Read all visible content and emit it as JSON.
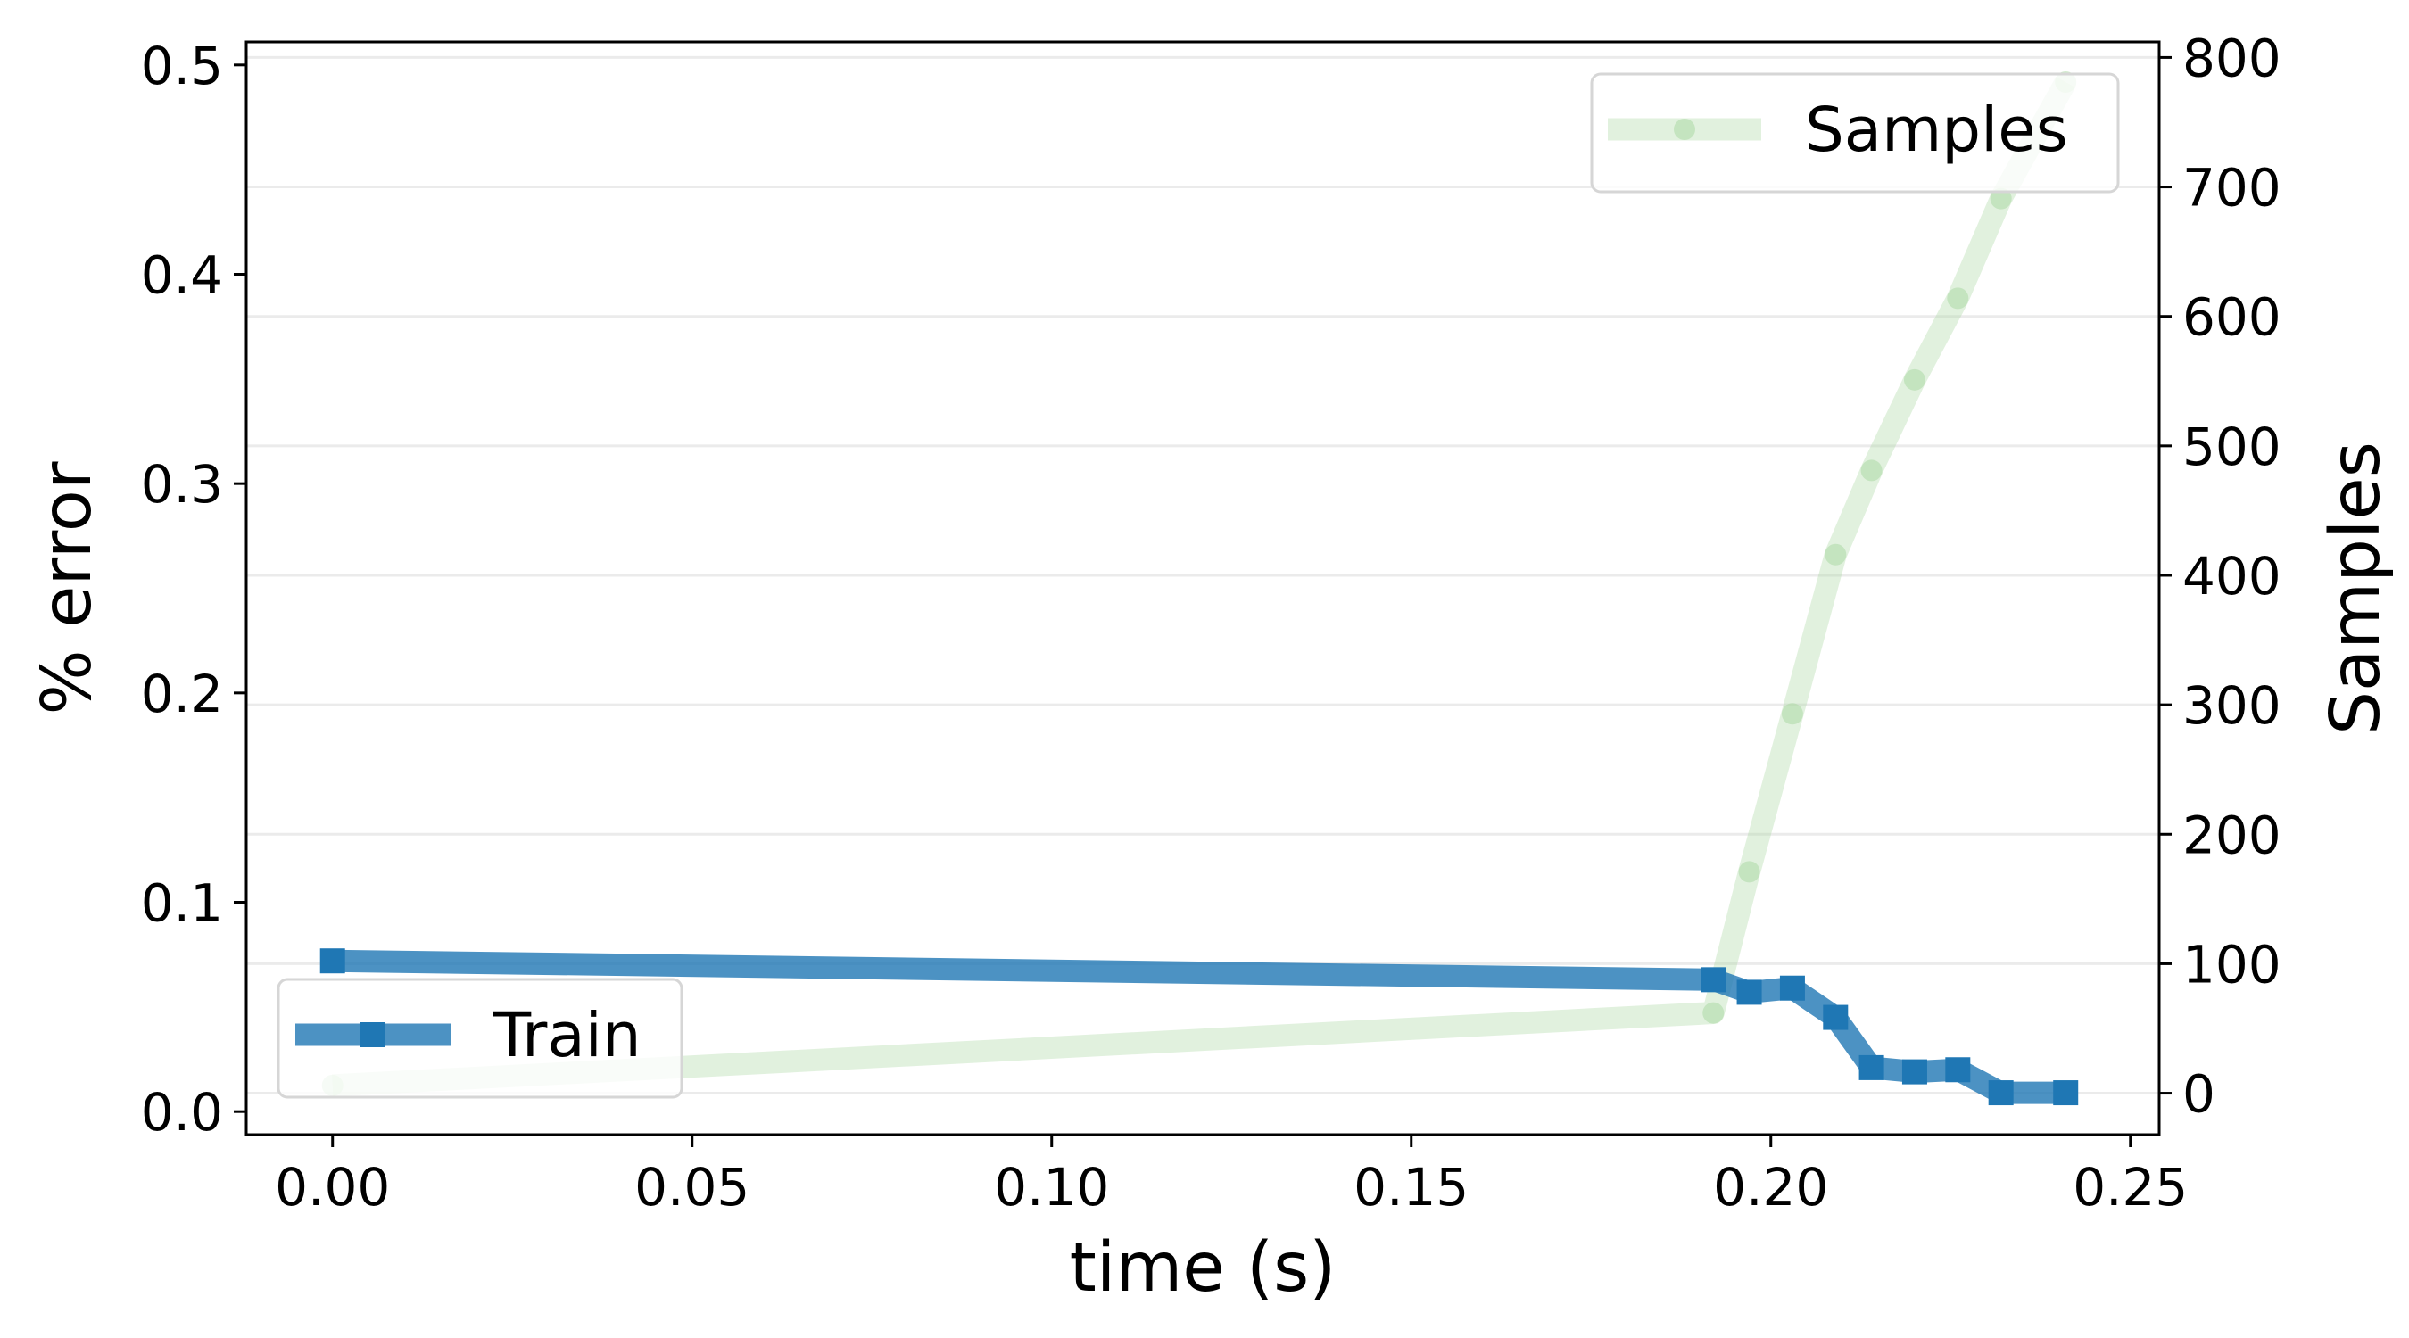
{
  "chart_data": {
    "type": "line",
    "title": "",
    "xlabel": "time (s)",
    "ylabel": "% error",
    "y2label": "Samples",
    "xlim": [
      -0.012,
      0.254
    ],
    "ylim": [
      -0.011,
      0.511
    ],
    "y2lim": [
      -32,
      812
    ],
    "xticks": [
      "0.00",
      "0.05",
      "0.10",
      "0.15",
      "0.20",
      "0.25"
    ],
    "yticks": [
      "0.0",
      "0.1",
      "0.2",
      "0.3",
      "0.4",
      "0.5"
    ],
    "y2ticks": [
      "0",
      "100",
      "200",
      "300",
      "400",
      "500",
      "600",
      "700",
      "800"
    ],
    "grid": "horizontal, light, secondary axis",
    "series": [
      {
        "name": "Train",
        "axis": "left",
        "color": "#1f77b4",
        "marker": "square",
        "x": [
          0.0,
          0.192,
          0.197,
          0.203,
          0.209,
          0.214,
          0.22,
          0.226,
          0.232,
          0.241
        ],
        "values": [
          0.072,
          0.063,
          0.057,
          0.059,
          0.045,
          0.021,
          0.019,
          0.02,
          0.009,
          0.009
        ]
      },
      {
        "name": "Samples",
        "axis": "right",
        "color": "#a8d8a0",
        "marker": "circle",
        "x": [
          0.0,
          0.192,
          0.197,
          0.203,
          0.209,
          0.214,
          0.22,
          0.226,
          0.232,
          0.241
        ],
        "values": [
          6,
          62,
          171,
          293,
          416,
          481,
          551,
          614,
          691,
          781
        ]
      }
    ],
    "legends": [
      {
        "series": "Samples",
        "placement": "top-right"
      },
      {
        "series": "Train",
        "placement": "lower-left"
      }
    ]
  }
}
